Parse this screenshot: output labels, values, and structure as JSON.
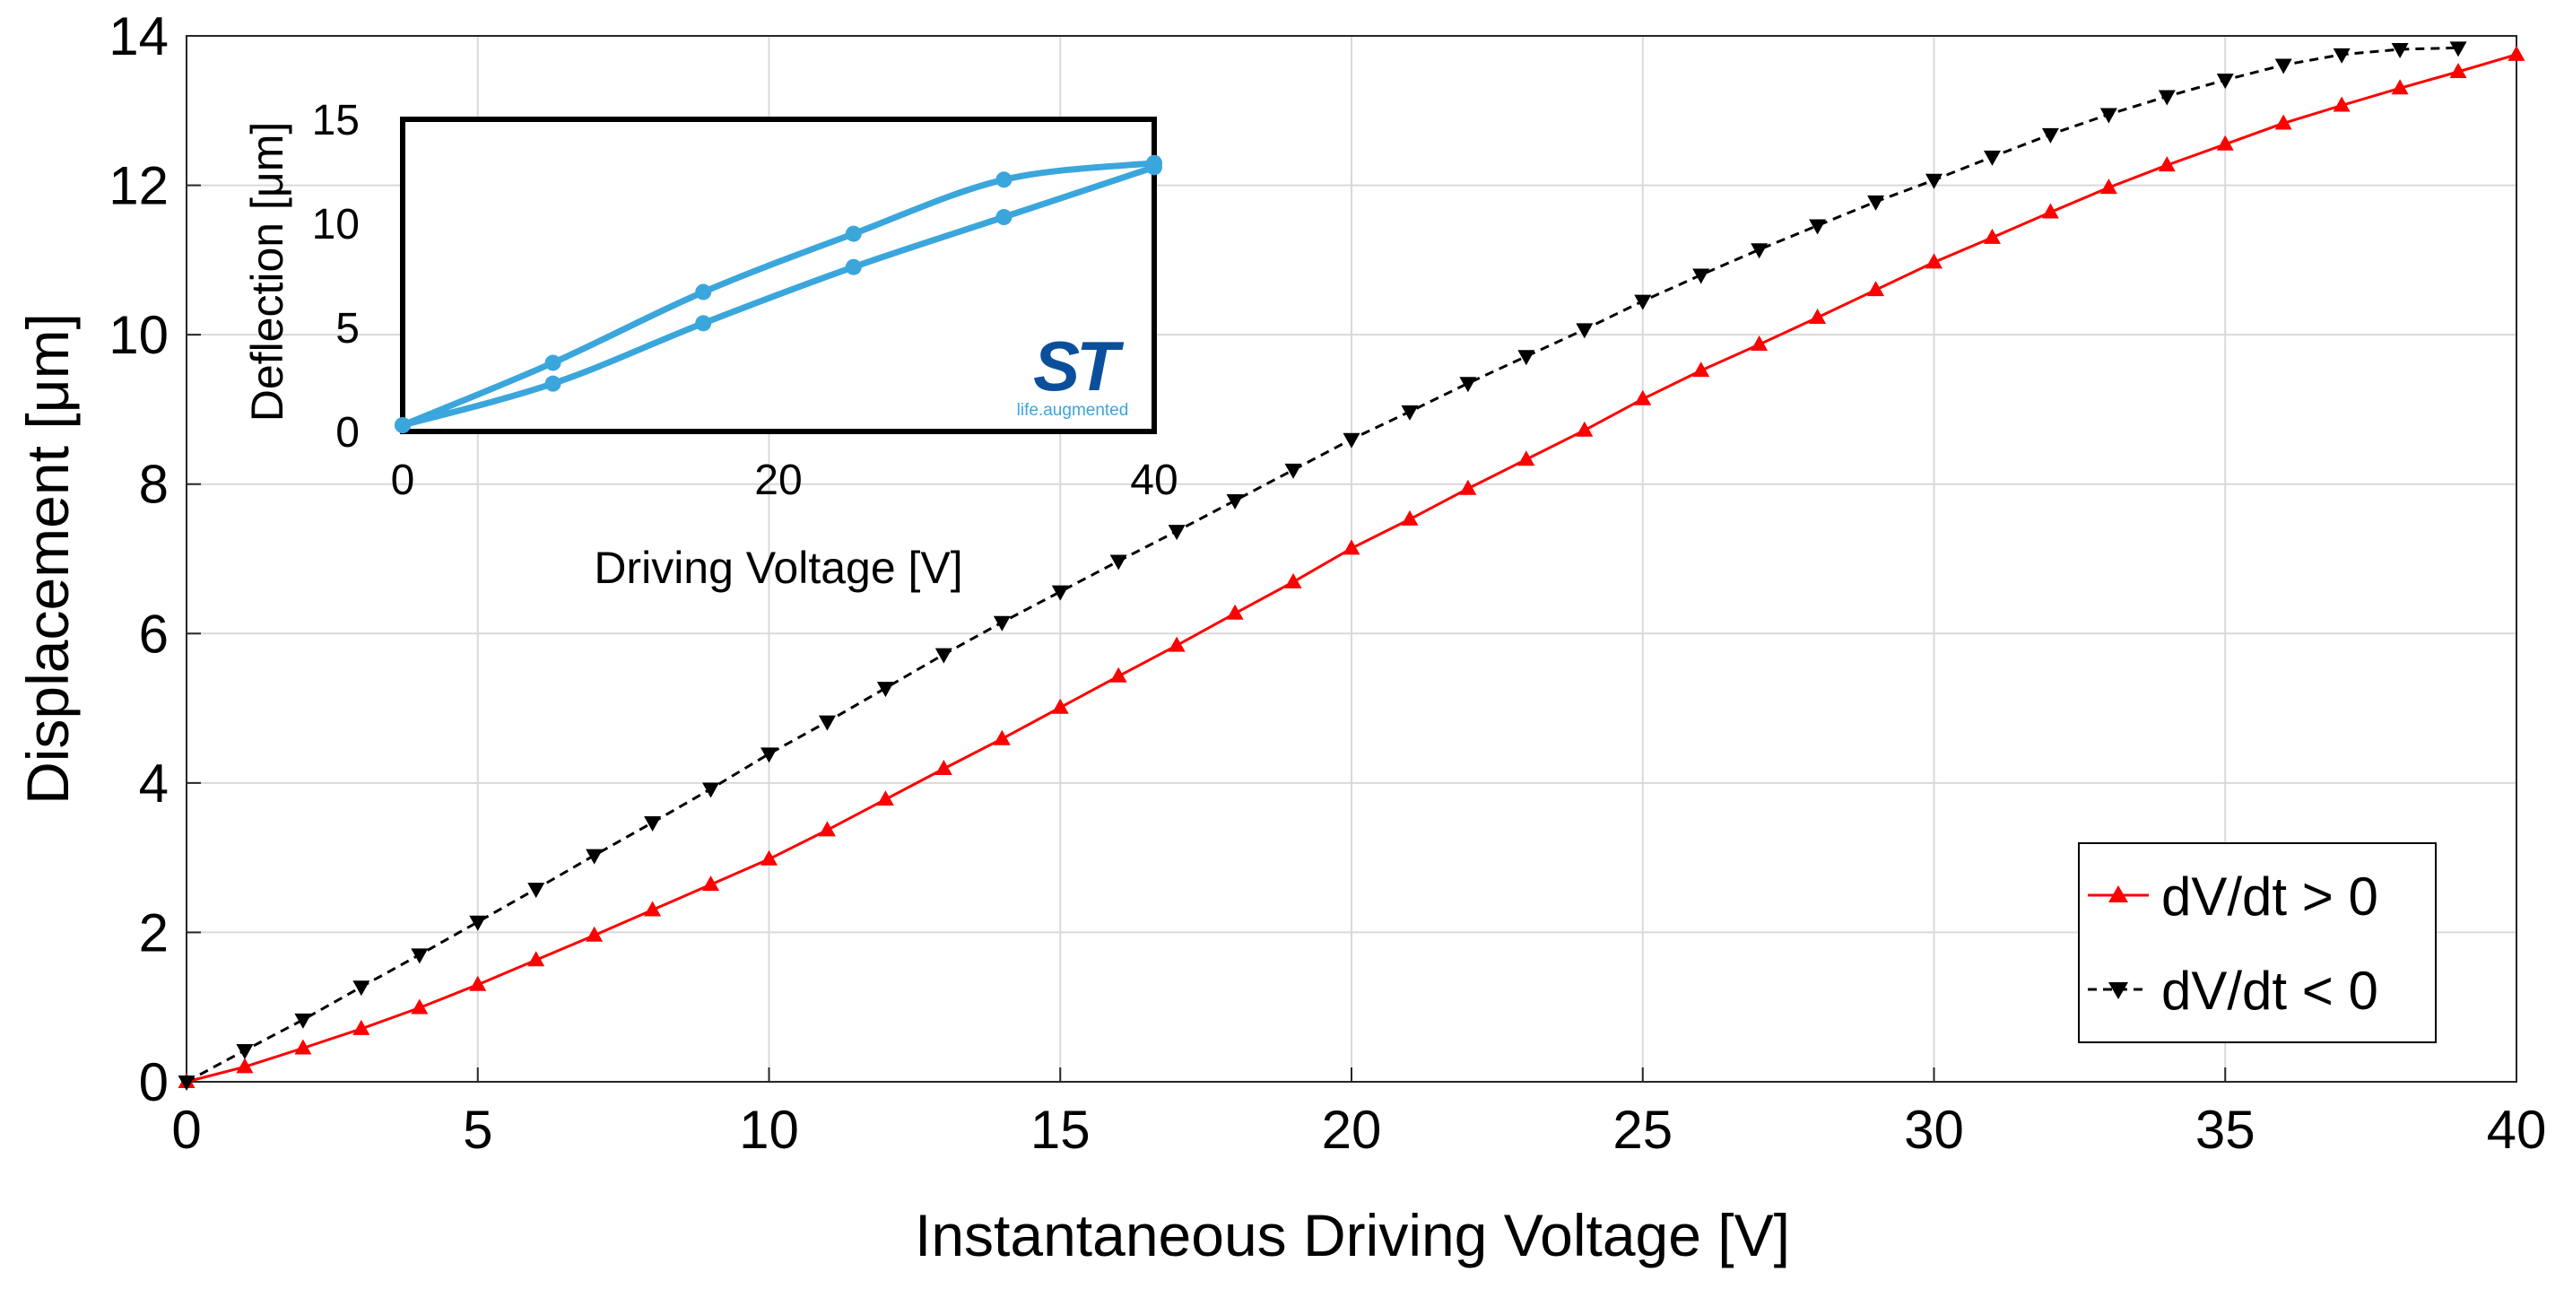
{
  "colors": {
    "rising": "#ff0000",
    "falling": "#000000",
    "inset": "#3aa6dc",
    "st_logo": "#0b4f9c",
    "st_tagline": "#3aa6dc",
    "grid": "#d9d9d9"
  },
  "logo": {
    "name": "st-logo",
    "text": "ST",
    "tagline": "life.augmented"
  },
  "chart_data": [
    {
      "type": "line",
      "title": "",
      "xlabel": "Instantaneous Driving Voltage [V]",
      "ylabel": "Displacement [μm]",
      "xlim": [
        0,
        40
      ],
      "ylim": [
        0,
        14
      ],
      "xticks": [
        0,
        5,
        10,
        15,
        20,
        25,
        30,
        35,
        40
      ],
      "yticks": [
        0,
        2,
        4,
        6,
        8,
        10,
        12,
        14
      ],
      "xtick_labels": [
        "0",
        "5",
        "10",
        "15",
        "20",
        "25",
        "30",
        "35",
        "40"
      ],
      "ytick_labels": [
        "0",
        "2",
        "4",
        "6",
        "8",
        "10",
        "12",
        "14"
      ],
      "grid": true,
      "legend": "lower-right",
      "series": [
        {
          "name": "dV/dt > 0",
          "marker": "triangle-up",
          "color": "#ff0000",
          "x": [
            0,
            1,
            2,
            3,
            4,
            5,
            6,
            7,
            8,
            9,
            10,
            11,
            12,
            13,
            14,
            15,
            16,
            17,
            18,
            19,
            20,
            21,
            22,
            23,
            24,
            25,
            26,
            27,
            28,
            29,
            30,
            31,
            32,
            33,
            34,
            35,
            36,
            37,
            38,
            39,
            40
          ],
          "y": [
            0,
            0.2,
            0.45,
            0.71,
            0.99,
            1.3,
            1.63,
            1.96,
            2.3,
            2.64,
            2.98,
            3.37,
            3.78,
            4.19,
            4.59,
            5.01,
            5.43,
            5.84,
            6.27,
            6.69,
            7.14,
            7.53,
            7.94,
            8.33,
            8.72,
            9.14,
            9.52,
            9.87,
            10.23,
            10.6,
            10.97,
            11.3,
            11.64,
            11.97,
            12.27,
            12.55,
            12.83,
            13.07,
            13.3,
            13.52,
            13.75
          ]
        },
        {
          "name": "dV/dt < 0",
          "marker": "triangle-down",
          "color": "#000000",
          "x": [
            0,
            1,
            2,
            3,
            4,
            5,
            6,
            7,
            8,
            9,
            10,
            11,
            12,
            13,
            14,
            15,
            16,
            17,
            18,
            19,
            20,
            21,
            22,
            23,
            24,
            25,
            26,
            27,
            28,
            29,
            30,
            31,
            32,
            33,
            34,
            35,
            36,
            37,
            38,
            39
          ],
          "y": [
            0,
            0.42,
            0.83,
            1.27,
            1.7,
            2.14,
            2.58,
            3.03,
            3.47,
            3.92,
            4.39,
            4.82,
            5.27,
            5.72,
            6.15,
            6.56,
            6.97,
            7.37,
            7.78,
            8.19,
            8.6,
            8.97,
            9.35,
            9.71,
            10.07,
            10.45,
            10.8,
            11.14,
            11.46,
            11.78,
            12.07,
            12.38,
            12.68,
            12.95,
            13.19,
            13.41,
            13.61,
            13.75,
            13.82,
            13.84
          ]
        }
      ]
    },
    {
      "type": "line",
      "title": "",
      "xlabel": "Driving Voltage [V]",
      "ylabel": "Deflection [μm]",
      "xlim": [
        0,
        40
      ],
      "ylim": [
        0,
        15
      ],
      "xticks": [
        0,
        20,
        40
      ],
      "yticks": [
        0,
        5,
        10,
        15
      ],
      "xtick_labels": [
        "0",
        "20",
        "40"
      ],
      "ytick_labels": [
        "0",
        "5",
        "10",
        "15"
      ],
      "grid": false,
      "series": [
        {
          "color": "#3aa6dc",
          "x": [
            0,
            8,
            16,
            24,
            32,
            40
          ],
          "y": [
            0.3,
            2.3,
            5.2,
            7.9,
            10.3,
            12.7
          ]
        },
        {
          "color": "#3aa6dc",
          "x": [
            40,
            32,
            24,
            16,
            8,
            0
          ],
          "y": [
            12.9,
            12.1,
            9.5,
            6.7,
            3.3,
            0.3
          ]
        }
      ]
    }
  ]
}
